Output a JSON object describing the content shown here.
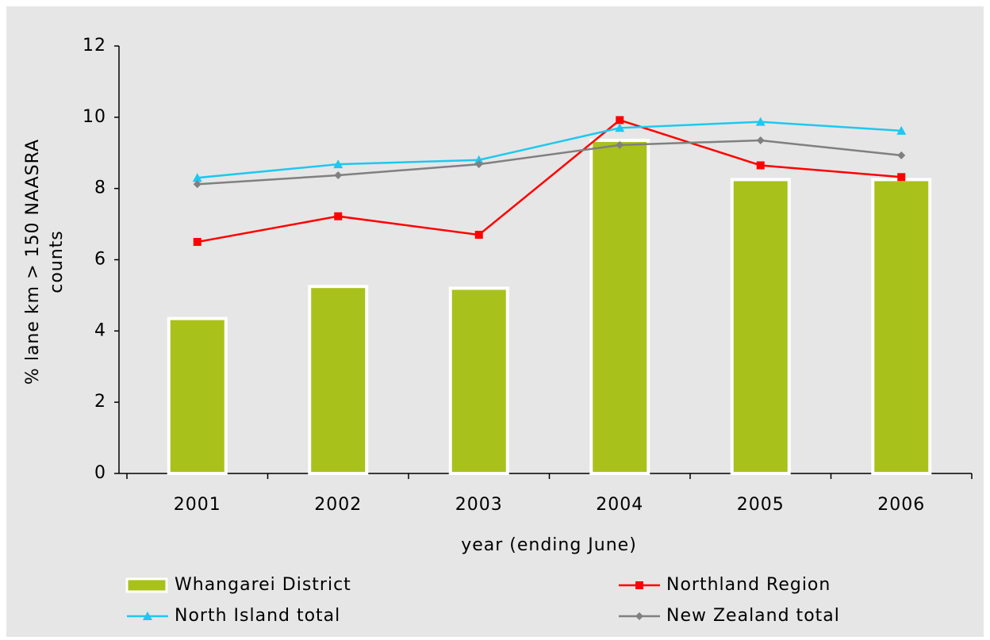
{
  "chart_data": {
    "type": "bar-line",
    "x_label": "year (ending June)",
    "y_label": [
      "% lane km > 150 NAASRA",
      "counts"
    ],
    "categories": [
      "2001",
      "2002",
      "2003",
      "2004",
      "2005",
      "2006"
    ],
    "series": [
      {
        "name": "Whangarei District",
        "type": "bar",
        "color": "#a9c11b",
        "values": [
          4.35,
          5.25,
          5.2,
          9.35,
          8.25,
          8.25
        ]
      },
      {
        "name": "Northland Region",
        "type": "line",
        "marker": "square",
        "color": "#ff0000",
        "values": [
          6.5,
          7.22,
          6.7,
          9.92,
          8.65,
          8.32
        ]
      },
      {
        "name": "North Island total",
        "type": "line",
        "marker": "triangle",
        "color": "#1ec8f0",
        "values": [
          8.3,
          8.68,
          8.8,
          9.7,
          9.87,
          9.62
        ]
      },
      {
        "name": "New Zealand total",
        "type": "line",
        "marker": "diamond",
        "color": "#808080",
        "values": [
          8.12,
          8.37,
          8.68,
          9.22,
          9.35,
          8.93
        ]
      }
    ],
    "ylim": [
      0,
      12
    ],
    "yticks": [
      0,
      2,
      4,
      6,
      8,
      10,
      12
    ]
  }
}
